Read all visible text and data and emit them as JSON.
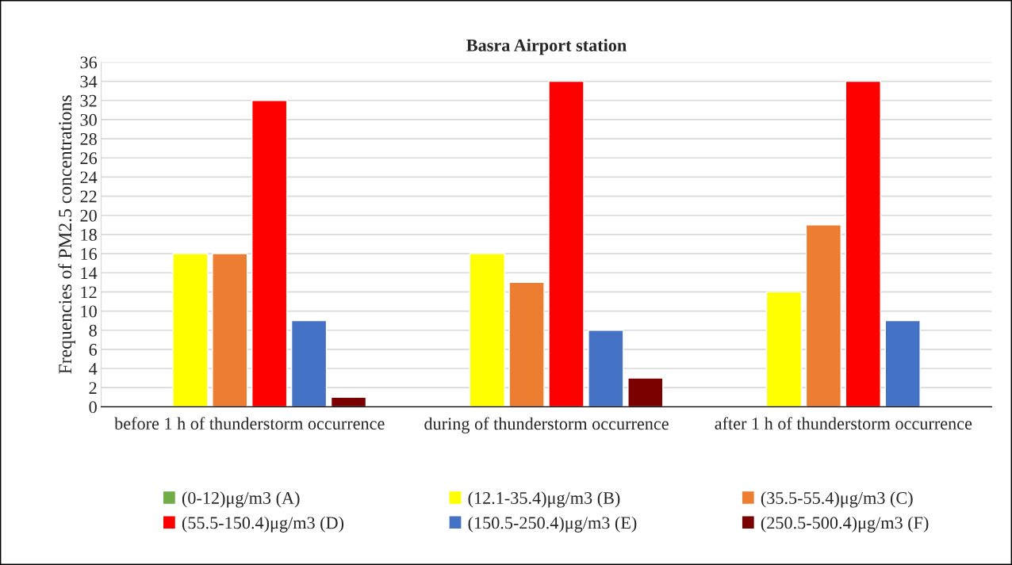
{
  "chart_data": {
    "type": "bar",
    "title": "Basra Airport station",
    "ylabel": "Frequencies of PM2.5 concentrations",
    "categories": [
      "before 1 h of thunderstorm occurrence",
      "during of thunderstorm occurrence",
      "after 1 h of thunderstorm occurrence"
    ],
    "series": [
      {
        "name": "(0-12)μg/m3 (A)",
        "color": "#70ad47",
        "values": [
          null,
          null,
          null
        ]
      },
      {
        "name": "(12.1-35.4)μg/m3 (B)",
        "color": "#ffff00",
        "values": [
          16,
          16,
          12
        ]
      },
      {
        "name": "(35.5-55.4)μg/m3 (C)",
        "color": "#ed7d31",
        "values": [
          16,
          13,
          19
        ]
      },
      {
        "name": "(55.5-150.4)μg/m3 (D)",
        "color": "#ff0000",
        "values": [
          32,
          34,
          34
        ]
      },
      {
        "name": "(150.5-250.4)μg/m3 (E)",
        "color": "#4472c4",
        "values": [
          9,
          8,
          9
        ]
      },
      {
        "name": "(250.5-500.4)μg/m3 (F)",
        "color": "#7b0000",
        "values": [
          1,
          3,
          null
        ]
      }
    ],
    "ylim": [
      0,
      36
    ],
    "yticks": [
      0,
      2,
      4,
      6,
      8,
      10,
      12,
      14,
      16,
      18,
      20,
      22,
      24,
      26,
      28,
      30,
      32,
      34,
      36
    ],
    "grid": "y",
    "legend": "bottom"
  }
}
